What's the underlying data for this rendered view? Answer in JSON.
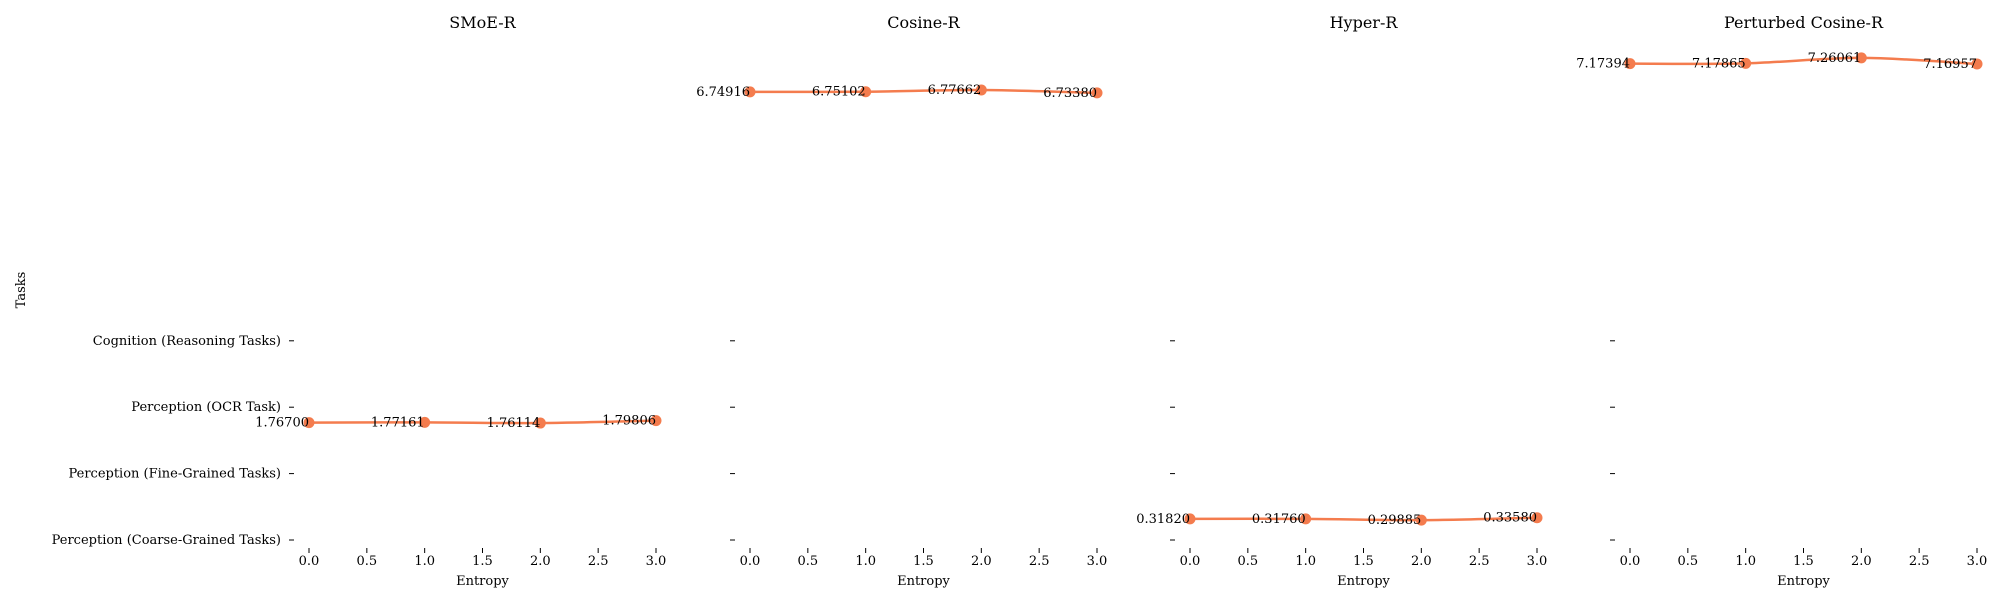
{
  "chart_data": {
    "type": "line",
    "ylabel": "Tasks",
    "y_categories": [
      "Perception (Coarse-Grained Tasks)",
      "Perception (Fine-Grained Tasks)",
      "Perception (OCR Task)",
      "Cognition (Reasoning Tasks)"
    ],
    "xlim": [
      0,
      3
    ],
    "xticks": [
      "0.0",
      "0.5",
      "1.0",
      "1.5",
      "2.0",
      "2.5",
      "3.0"
    ],
    "grid": false,
    "line_color": "#f47c4e",
    "panels": [
      {
        "title": "SMoE-R",
        "xlabel": "Entropy",
        "x": [
          0,
          1,
          2,
          3
        ],
        "y": [
          1.767,
          1.77161,
          1.76114,
          1.79806
        ],
        "labels": [
          "1.76700",
          "1.77161",
          "1.76114",
          "1.79806"
        ]
      },
      {
        "title": "Cosine-R",
        "xlabel": "Entropy",
        "x": [
          0,
          1,
          2,
          3
        ],
        "y": [
          6.74916,
          6.75102,
          6.77662,
          6.7338
        ],
        "labels": [
          "6.74916",
          "6.75102",
          "6.77662",
          "6.73380"
        ]
      },
      {
        "title": "Hyper-R",
        "xlabel": "Entropy",
        "x": [
          0,
          1,
          2,
          3
        ],
        "y": [
          0.3182,
          0.3176,
          0.29885,
          0.3358
        ],
        "labels": [
          "0.31820",
          "0.31760",
          "0.29885",
          "0.33580"
        ]
      },
      {
        "title": "Perturbed Cosine-R",
        "xlabel": "Entropy",
        "x": [
          0,
          1,
          2,
          3
        ],
        "y": [
          7.17394,
          7.17865,
          7.26061,
          7.16957
        ],
        "labels": [
          "7.17394",
          "7.17865",
          "7.26061",
          "7.16957"
        ]
      }
    ]
  }
}
